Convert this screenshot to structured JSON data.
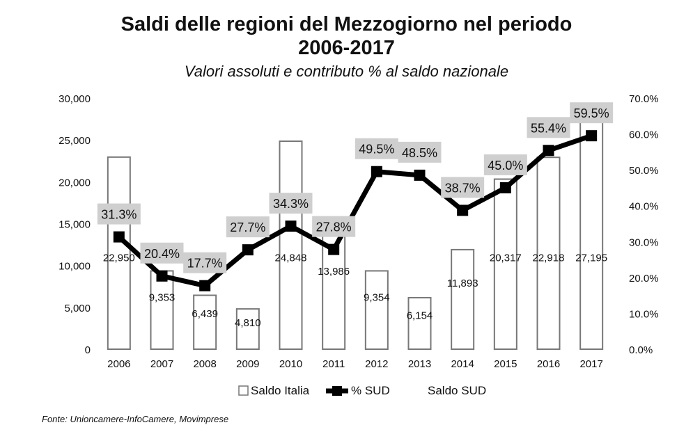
{
  "chart_data": {
    "type": "bar",
    "title_line1": "Saldi delle regioni del Mezzogiorno nel periodo",
    "title_line2": "2006-2017",
    "subtitle": "Valori assoluti e contributo % al saldo nazionale",
    "categories": [
      "2006",
      "2007",
      "2008",
      "2009",
      "2010",
      "2011",
      "2012",
      "2013",
      "2014",
      "2015",
      "2016",
      "2017"
    ],
    "series": [
      {
        "name": "Saldo Italia",
        "type": "bar",
        "axis": "left",
        "values": [
          22950,
          9353,
          6439,
          4810,
          24848,
          13986,
          9354,
          6154,
          11893,
          20317,
          22918,
          27195
        ],
        "labels": [
          "22,950",
          "9,353",
          "6,439",
          "4,810",
          "24,848",
          "13,986",
          "9,354",
          "6,154",
          "11,893",
          "20,317",
          "22,918",
          "27,195"
        ]
      },
      {
        "name": "% SUD",
        "type": "line",
        "axis": "right",
        "values": [
          31.3,
          20.4,
          17.7,
          27.7,
          34.3,
          27.8,
          49.5,
          48.5,
          38.7,
          45.0,
          55.4,
          59.5
        ],
        "labels": [
          "31.3%",
          "20.4%",
          "17.7%",
          "27.7%",
          "34.3%",
          "27.8%",
          "49.5%",
          "48.5%",
          "38.7%",
          "45.0%",
          "55.4%",
          "59.5%"
        ]
      }
    ],
    "left_axis": {
      "range": [
        0,
        30000
      ],
      "ticks": [
        "0",
        "5,000",
        "10,000",
        "15,000",
        "20,000",
        "25,000",
        "30,000"
      ]
    },
    "right_axis": {
      "range": [
        0,
        70
      ],
      "ticks": [
        "0.0%",
        "10.0%",
        "20.0%",
        "30.0%",
        "40.0%",
        "50.0%",
        "60.0%",
        "70.0%"
      ]
    },
    "legend": {
      "position": "bottom",
      "items": [
        "Saldo Italia",
        "% SUD",
        "Saldo SUD"
      ]
    },
    "grid": false,
    "colors": {
      "bar_fill": "#ffffff",
      "bar_stroke": "#777777",
      "line": "#000000",
      "label_box": "#cfcfcf"
    }
  },
  "source": "Fonte: Unioncamere-InfoCamere, Movimprese"
}
